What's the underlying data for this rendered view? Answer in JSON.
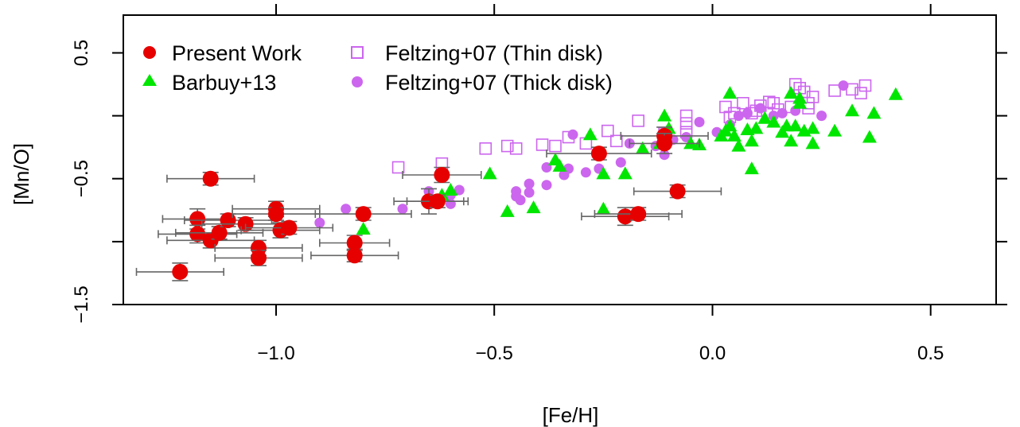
{
  "chart_data": {
    "type": "scatter",
    "xlabel": "[Fe/H]",
    "ylabel": "[Mn/O]",
    "xlim": [
      -1.35,
      0.65
    ],
    "ylim": [
      -1.5,
      0.8
    ],
    "xticks": [
      -1.0,
      -0.5,
      0.0,
      0.5
    ],
    "xtick_labels": [
      "−1.0",
      "−0.5",
      "0.0",
      "0.5"
    ],
    "yticks": [
      0.5,
      -0.5,
      -1.5
    ],
    "ytick_labels": [
      "0.5",
      "−0.5",
      "−1.5"
    ],
    "grid": false,
    "legend_position": "top-left",
    "colors": {
      "present": "#e60000",
      "barbuy": "#00e600",
      "feltzing": "#cc66ee",
      "errorbar": "#666666"
    },
    "series": [
      {
        "name": "Present Work",
        "marker": "filled-circle-with-errorbars",
        "points": [
          {
            "x": -1.22,
            "y": -1.24,
            "xerr": 0.1,
            "yerr": 0.07
          },
          {
            "x": -1.15,
            "y": -0.5,
            "xerr": 0.1,
            "yerr": 0.05
          },
          {
            "x": -1.18,
            "y": -0.82,
            "xerr": 0.08,
            "yerr": 0.08
          },
          {
            "x": -1.18,
            "y": -0.94,
            "xerr": 0.09,
            "yerr": 0.07
          },
          {
            "x": -1.15,
            "y": -0.99,
            "xerr": 0.1,
            "yerr": 0.06
          },
          {
            "x": -1.13,
            "y": -0.93,
            "xerr": 0.1,
            "yerr": 0.05
          },
          {
            "x": -1.11,
            "y": -0.83,
            "xerr": 0.1,
            "yerr": 0.05
          },
          {
            "x": -1.07,
            "y": -0.86,
            "xerr": 0.1,
            "yerr": 0.05
          },
          {
            "x": -1.04,
            "y": -1.05,
            "xerr": 0.1,
            "yerr": 0.06
          },
          {
            "x": -1.04,
            "y": -1.13,
            "xerr": 0.1,
            "yerr": 0.06
          },
          {
            "x": -1.0,
            "y": -0.74,
            "xerr": 0.1,
            "yerr": 0.06
          },
          {
            "x": -1.0,
            "y": -0.78,
            "xerr": 0.1,
            "yerr": 0.05
          },
          {
            "x": -0.99,
            "y": -0.91,
            "xerr": 0.09,
            "yerr": 0.06
          },
          {
            "x": -0.97,
            "y": -0.89,
            "xerr": 0.1,
            "yerr": 0.05
          },
          {
            "x": -0.82,
            "y": -1.01,
            "xerr": 0.08,
            "yerr": 0.06
          },
          {
            "x": -0.82,
            "y": -1.11,
            "xerr": 0.1,
            "yerr": 0.05
          },
          {
            "x": -0.8,
            "y": -0.78,
            "xerr": 0.11,
            "yerr": 0.05
          },
          {
            "x": -0.65,
            "y": -0.68,
            "xerr": 0.08,
            "yerr": 0.1
          },
          {
            "x": -0.63,
            "y": -0.68,
            "xerr": 0.07,
            "yerr": 0.05
          },
          {
            "x": -0.62,
            "y": -0.47,
            "xerr": 0.09,
            "yerr": 0.06
          },
          {
            "x": -0.26,
            "y": -0.3,
            "xerr": 0.12,
            "yerr": 0.05
          },
          {
            "x": -0.2,
            "y": -0.8,
            "xerr": 0.1,
            "yerr": 0.07
          },
          {
            "x": -0.17,
            "y": -0.78,
            "xerr": 0.1,
            "yerr": 0.05
          },
          {
            "x": -0.11,
            "y": -0.16,
            "xerr": 0.1,
            "yerr": 0.07
          },
          {
            "x": -0.11,
            "y": -0.22,
            "xerr": 0.08,
            "yerr": 0.08
          },
          {
            "x": -0.08,
            "y": -0.6,
            "xerr": 0.1,
            "yerr": 0.05
          }
        ]
      },
      {
        "name": "Barbuy+13",
        "marker": "filled-triangle",
        "points": [
          {
            "x": -0.8,
            "y": -0.9
          },
          {
            "x": -0.6,
            "y": -0.59
          },
          {
            "x": -0.62,
            "y": -0.63
          },
          {
            "x": -0.51,
            "y": -0.46
          },
          {
            "x": -0.47,
            "y": -0.76
          },
          {
            "x": -0.41,
            "y": -0.73
          },
          {
            "x": -0.36,
            "y": -0.35
          },
          {
            "x": -0.35,
            "y": -0.4
          },
          {
            "x": -0.28,
            "y": -0.15
          },
          {
            "x": -0.25,
            "y": -0.46
          },
          {
            "x": -0.25,
            "y": -0.74
          },
          {
            "x": -0.2,
            "y": -0.46
          },
          {
            "x": -0.16,
            "y": -0.26
          },
          {
            "x": -0.12,
            "y": -0.22
          },
          {
            "x": -0.1,
            "y": -0.1
          },
          {
            "x": -0.11,
            "y": 0.0
          },
          {
            "x": -0.05,
            "y": -0.22
          },
          {
            "x": -0.03,
            "y": -0.23
          },
          {
            "x": 0.02,
            "y": -0.16
          },
          {
            "x": 0.03,
            "y": -0.12
          },
          {
            "x": 0.04,
            "y": -0.08
          },
          {
            "x": 0.04,
            "y": 0.18
          },
          {
            "x": 0.05,
            "y": -0.16
          },
          {
            "x": 0.06,
            "y": -0.24
          },
          {
            "x": 0.08,
            "y": -0.11
          },
          {
            "x": 0.09,
            "y": -0.2
          },
          {
            "x": 0.09,
            "y": -0.42
          },
          {
            "x": 0.1,
            "y": -0.1
          },
          {
            "x": 0.12,
            "y": -0.02
          },
          {
            "x": 0.14,
            "y": -0.05
          },
          {
            "x": 0.16,
            "y": -0.13
          },
          {
            "x": 0.17,
            "y": -0.08
          },
          {
            "x": 0.18,
            "y": -0.2
          },
          {
            "x": 0.19,
            "y": -0.08
          },
          {
            "x": 0.18,
            "y": 0.18
          },
          {
            "x": 0.2,
            "y": 0.14
          },
          {
            "x": 0.2,
            "y": 0.1
          },
          {
            "x": 0.21,
            "y": -0.12
          },
          {
            "x": 0.23,
            "y": -0.1
          },
          {
            "x": 0.23,
            "y": -0.22
          },
          {
            "x": 0.28,
            "y": -0.12
          },
          {
            "x": 0.32,
            "y": 0.04
          },
          {
            "x": 0.36,
            "y": -0.17
          },
          {
            "x": 0.37,
            "y": 0.02
          },
          {
            "x": 0.42,
            "y": 0.17
          }
        ]
      },
      {
        "name": "Feltzing+07 (Thin disk)",
        "marker": "open-square",
        "points": [
          {
            "x": -0.72,
            "y": -0.41
          },
          {
            "x": -0.62,
            "y": -0.38
          },
          {
            "x": -0.52,
            "y": -0.26
          },
          {
            "x": -0.47,
            "y": -0.24
          },
          {
            "x": -0.45,
            "y": -0.26
          },
          {
            "x": -0.39,
            "y": -0.23
          },
          {
            "x": -0.36,
            "y": -0.24
          },
          {
            "x": -0.33,
            "y": -0.17
          },
          {
            "x": -0.29,
            "y": -0.22
          },
          {
            "x": -0.24,
            "y": -0.12
          },
          {
            "x": -0.22,
            "y": -0.2
          },
          {
            "x": -0.17,
            "y": -0.04
          },
          {
            "x": -0.11,
            "y": -0.14
          },
          {
            "x": -0.06,
            "y": -0.06
          },
          {
            "x": -0.06,
            "y": -0.13
          },
          {
            "x": -0.06,
            "y": 0.0
          },
          {
            "x": 0.03,
            "y": 0.07
          },
          {
            "x": 0.04,
            "y": -0.01
          },
          {
            "x": 0.05,
            "y": 0.02
          },
          {
            "x": 0.07,
            "y": 0.1
          },
          {
            "x": 0.09,
            "y": 0.02
          },
          {
            "x": 0.1,
            "y": 0.04
          },
          {
            "x": 0.11,
            "y": 0.08
          },
          {
            "x": 0.13,
            "y": 0.11
          },
          {
            "x": 0.14,
            "y": 0.1
          },
          {
            "x": 0.15,
            "y": 0.05
          },
          {
            "x": 0.18,
            "y": 0.07
          },
          {
            "x": 0.19,
            "y": 0.25
          },
          {
            "x": 0.2,
            "y": 0.22
          },
          {
            "x": 0.21,
            "y": 0.19
          },
          {
            "x": 0.22,
            "y": 0.06
          },
          {
            "x": 0.22,
            "y": 0.1
          },
          {
            "x": 0.23,
            "y": 0.15
          },
          {
            "x": 0.28,
            "y": 0.2
          },
          {
            "x": 0.32,
            "y": 0.21
          },
          {
            "x": 0.34,
            "y": 0.18
          },
          {
            "x": 0.35,
            "y": 0.24
          }
        ]
      },
      {
        "name": "Feltzing+07 (Thick disk)",
        "marker": "filled-circle",
        "points": [
          {
            "x": -0.9,
            "y": -0.85
          },
          {
            "x": -0.84,
            "y": -0.74
          },
          {
            "x": -0.71,
            "y": -0.74
          },
          {
            "x": -0.65,
            "y": -0.6
          },
          {
            "x": -0.6,
            "y": -0.63
          },
          {
            "x": -0.6,
            "y": -0.7
          },
          {
            "x": -0.58,
            "y": -0.59
          },
          {
            "x": -0.45,
            "y": -0.6
          },
          {
            "x": -0.45,
            "y": -0.64
          },
          {
            "x": -0.44,
            "y": -0.67
          },
          {
            "x": -0.42,
            "y": -0.54
          },
          {
            "x": -0.42,
            "y": -0.61
          },
          {
            "x": -0.38,
            "y": -0.55
          },
          {
            "x": -0.38,
            "y": -0.41
          },
          {
            "x": -0.34,
            "y": -0.47
          },
          {
            "x": -0.33,
            "y": -0.42
          },
          {
            "x": -0.32,
            "y": -0.15
          },
          {
            "x": -0.29,
            "y": -0.45
          },
          {
            "x": -0.26,
            "y": -0.42
          },
          {
            "x": -0.21,
            "y": -0.37
          },
          {
            "x": -0.19,
            "y": -0.22
          },
          {
            "x": -0.13,
            "y": -0.24
          },
          {
            "x": -0.11,
            "y": -0.31
          },
          {
            "x": -0.09,
            "y": -0.19
          },
          {
            "x": -0.06,
            "y": -0.17
          },
          {
            "x": -0.03,
            "y": -0.05
          },
          {
            "x": 0.01,
            "y": -0.13
          },
          {
            "x": 0.04,
            "y": -0.07
          },
          {
            "x": 0.06,
            "y": 0.0
          },
          {
            "x": 0.08,
            "y": 0.02
          },
          {
            "x": 0.11,
            "y": 0.06
          },
          {
            "x": 0.14,
            "y": 0.0
          },
          {
            "x": 0.16,
            "y": 0.02
          },
          {
            "x": 0.19,
            "y": 0.04
          },
          {
            "x": 0.25,
            "y": 0.0
          },
          {
            "x": 0.3,
            "y": 0.24
          }
        ]
      }
    ]
  },
  "legend": {
    "items": [
      {
        "label": "Present Work",
        "marker": "filled-circle",
        "color": "#e60000"
      },
      {
        "label": "Barbuy+13",
        "marker": "filled-triangle",
        "color": "#00e600"
      },
      {
        "label": "Feltzing+07 (Thin disk)",
        "marker": "open-square",
        "color": "#cc66ee"
      },
      {
        "label": "Feltzing+07 (Thick disk)",
        "marker": "filled-circle",
        "color": "#cc66ee"
      }
    ]
  }
}
